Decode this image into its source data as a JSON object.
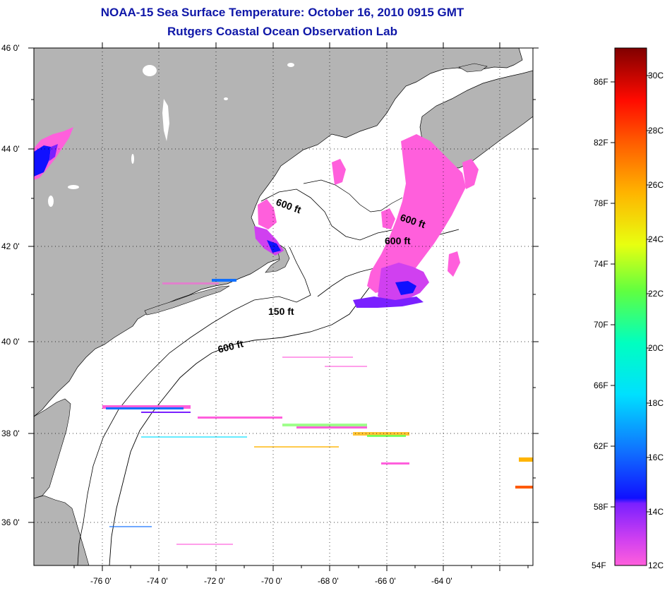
{
  "title": "NOAA-15 Sea Surface Temperature:  October 16, 2010 0915 GMT",
  "subtitle": "Rutgers Coastal Ocean Observation Lab",
  "colors": {
    "title": "#0f17a8",
    "land": "#b4b4b4",
    "ocean": "#ffffff"
  },
  "map": {
    "lat_labels": [
      "46 0'",
      "44 0'",
      "42 0'",
      "40 0'",
      "38 0'",
      "36 0'"
    ],
    "lon_labels": [
      "-76 0'",
      "-74 0'",
      "-72 0'",
      "-70 0'",
      "-68 0'",
      "-66 0'",
      "-64 0'"
    ],
    "contour_labels": [
      "600 ft",
      "600 ft",
      "600 ft",
      "150 ft",
      "600 ft"
    ]
  },
  "colorbar": {
    "fahrenheit_labels": [
      "86F",
      "82F",
      "78F",
      "74F",
      "70F",
      "66F",
      "62F",
      "58F",
      "54F"
    ],
    "celsius_labels": [
      "30C",
      "28C",
      "26C",
      "24C",
      "22C",
      "20C",
      "18C",
      "16C",
      "14C",
      "12C"
    ]
  }
}
